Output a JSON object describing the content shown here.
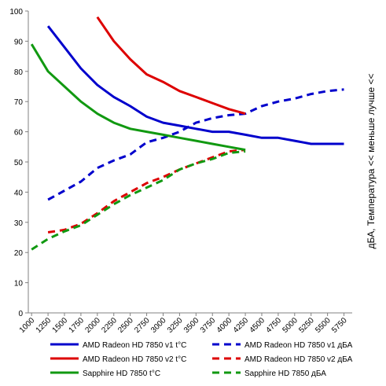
{
  "chart_data": {
    "type": "line",
    "title": "",
    "xlabel": "",
    "ylabel": "дБА, Температура << меньше лучше <<",
    "xlim": [
      1000,
      5750
    ],
    "ylim": [
      0,
      100
    ],
    "x_ticks": [
      "1000",
      "1250",
      "1500",
      "1750",
      "2000",
      "2250",
      "2500",
      "2750",
      "3000",
      "3250",
      "3500",
      "3750",
      "4000",
      "4250",
      "4500",
      "4750",
      "5000",
      "5250",
      "5500",
      "5750"
    ],
    "y_ticks": [
      "0",
      "10",
      "20",
      "30",
      "40",
      "50",
      "60",
      "70",
      "80",
      "90",
      "100"
    ],
    "grid": false,
    "legend": "bottom",
    "series": [
      {
        "name": "AMD Radeon HD 7850 v1 t°C",
        "color": "#0000cc",
        "dash": false,
        "points": [
          [
            1250,
            95
          ],
          [
            1500,
            88
          ],
          [
            1750,
            81
          ],
          [
            2000,
            75.5
          ],
          [
            2250,
            71.5
          ],
          [
            2500,
            68.5
          ],
          [
            2750,
            65
          ],
          [
            3000,
            63
          ],
          [
            3250,
            62
          ],
          [
            3500,
            61
          ],
          [
            3750,
            60
          ],
          [
            4000,
            60
          ],
          [
            4250,
            59
          ],
          [
            4500,
            58
          ],
          [
            4750,
            58
          ],
          [
            5000,
            57
          ],
          [
            5250,
            56
          ],
          [
            5500,
            56
          ],
          [
            5750,
            56
          ]
        ]
      },
      {
        "name": "AMD Radeon HD 7850 v1 дБА",
        "color": "#0000cc",
        "dash": true,
        "points": [
          [
            1250,
            37.5
          ],
          [
            1500,
            40.5
          ],
          [
            1750,
            43.5
          ],
          [
            2000,
            48
          ],
          [
            2250,
            50.5
          ],
          [
            2500,
            52.5
          ],
          [
            2750,
            56.5
          ],
          [
            3000,
            58
          ],
          [
            3250,
            60
          ],
          [
            3500,
            63
          ],
          [
            3750,
            64.5
          ],
          [
            4000,
            65.5
          ],
          [
            4250,
            66
          ],
          [
            4500,
            68.5
          ],
          [
            4750,
            70
          ],
          [
            5000,
            71
          ],
          [
            5250,
            72.5
          ],
          [
            5500,
            73.5
          ],
          [
            5750,
            74
          ]
        ]
      },
      {
        "name": "AMD Radeon HD 7850 v2 t°C",
        "color": "#dd0000",
        "dash": false,
        "points": [
          [
            2000,
            98
          ],
          [
            2250,
            90
          ],
          [
            2500,
            84
          ],
          [
            2750,
            79
          ],
          [
            3000,
            76.5
          ],
          [
            3250,
            73.5
          ],
          [
            3500,
            71.5
          ],
          [
            3750,
            69.5
          ],
          [
            4000,
            67.5
          ],
          [
            4250,
            66
          ]
        ]
      },
      {
        "name": "AMD Radeon HD 7850 v2 дБА",
        "color": "#dd0000",
        "dash": true,
        "points": [
          [
            1250,
            26.7
          ],
          [
            1500,
            27.5
          ],
          [
            1750,
            29.5
          ],
          [
            2000,
            33
          ],
          [
            2250,
            37
          ],
          [
            2500,
            40
          ],
          [
            2750,
            43
          ],
          [
            3000,
            45
          ],
          [
            3250,
            47.5
          ],
          [
            3500,
            49.5
          ],
          [
            3750,
            51.5
          ],
          [
            4000,
            53.5
          ],
          [
            4250,
            54
          ]
        ]
      },
      {
        "name": "Sapphire HD 7850 t°C",
        "color": "#119911",
        "dash": false,
        "points": [
          [
            1000,
            89
          ],
          [
            1250,
            80
          ],
          [
            1500,
            75
          ],
          [
            1750,
            70
          ],
          [
            2000,
            66
          ],
          [
            2250,
            63
          ],
          [
            2500,
            61
          ],
          [
            2750,
            60
          ],
          [
            3000,
            59
          ],
          [
            3250,
            58
          ],
          [
            3500,
            57
          ],
          [
            3750,
            56
          ],
          [
            4000,
            55
          ],
          [
            4250,
            54
          ]
        ]
      },
      {
        "name": "Sapphire HD 7850 дБА",
        "color": "#119911",
        "dash": true,
        "points": [
          [
            1000,
            21
          ],
          [
            1250,
            24.5
          ],
          [
            1500,
            27
          ],
          [
            1750,
            29
          ],
          [
            2000,
            32.5
          ],
          [
            2250,
            36
          ],
          [
            2500,
            39
          ],
          [
            2750,
            41.5
          ],
          [
            3000,
            44
          ],
          [
            3250,
            47.5
          ],
          [
            3500,
            49.5
          ],
          [
            3750,
            51
          ],
          [
            4000,
            53
          ],
          [
            4250,
            53.5
          ]
        ]
      }
    ]
  }
}
